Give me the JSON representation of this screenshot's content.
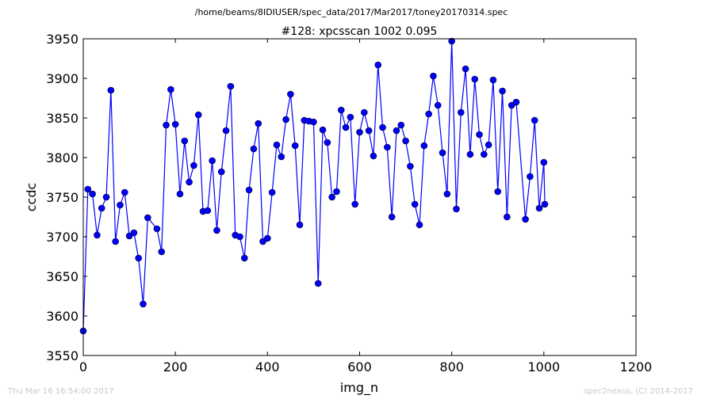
{
  "footer": {
    "timestamp": "Thu Mar 16 16:54:00 2017",
    "credit": "spec2nexus, (C) 2014-2017"
  },
  "chart_data": {
    "type": "line",
    "subtitle": "/home/beams/8IDIUSER/spec_data/2017/Mar2017/toney20170314.spec",
    "title": "#128: xpcsscan 1002 0.095",
    "xlabel": "img_n",
    "ylabel": "ccdc",
    "xlim": [
      0,
      1200
    ],
    "ylim": [
      3550,
      3950
    ],
    "xticks": [
      0,
      200,
      400,
      600,
      800,
      1000,
      1200
    ],
    "yticks": [
      3550,
      3600,
      3650,
      3700,
      3750,
      3800,
      3850,
      3900,
      3950
    ],
    "grid": false,
    "color": "#0000ff",
    "marker": "circle",
    "series": [
      {
        "x": [
          0,
          10,
          20,
          30,
          40,
          50,
          60,
          70,
          80,
          90,
          100,
          110,
          120,
          130,
          140,
          160,
          170,
          180,
          190,
          200,
          210,
          220,
          230,
          240,
          250,
          260,
          270,
          280,
          290,
          300,
          310,
          320,
          330,
          340,
          350,
          360,
          370,
          380,
          390,
          400,
          410,
          420,
          430,
          440,
          450,
          460,
          470,
          480,
          490,
          500,
          510,
          520,
          530,
          540,
          550,
          560,
          570,
          580,
          590,
          600,
          610,
          620,
          630,
          640,
          650,
          660,
          670,
          680,
          690,
          700,
          710,
          720,
          730,
          740,
          750,
          760,
          770,
          780,
          790,
          800,
          810,
          820,
          830,
          840,
          850,
          860,
          870,
          880,
          890,
          900,
          910,
          920,
          930,
          940,
          960,
          970,
          980,
          990,
          1000,
          1002
        ],
        "y": [
          3581,
          3760,
          3754,
          3702,
          3736,
          3750,
          3885,
          3694,
          3740,
          3756,
          3701,
          3705,
          3673,
          3615,
          3724,
          3710,
          3681,
          3841,
          3886,
          3842,
          3754,
          3821,
          3769,
          3790,
          3854,
          3732,
          3733,
          3796,
          3708,
          3782,
          3834,
          3890,
          3702,
          3700,
          3673,
          3759,
          3811,
          3843,
          3694,
          3698,
          3756,
          3816,
          3801,
          3848,
          3880,
          3815,
          3715,
          3847,
          3846,
          3845,
          3641,
          3835,
          3819,
          3750,
          3757,
          3860,
          3838,
          3851,
          3741,
          3832,
          3857,
          3834,
          3802,
          3917,
          3838,
          3813,
          3725,
          3834,
          3841,
          3821,
          3789,
          3741,
          3715,
          3815,
          3855,
          3903,
          3866,
          3806,
          3754,
          3947,
          3735,
          3857,
          3912,
          3804,
          3899,
          3829,
          3804,
          3816,
          3898,
          3757,
          3884,
          3725,
          3866,
          3870,
          3722,
          3776,
          3847,
          3736,
          3794,
          3741
        ]
      }
    ]
  }
}
